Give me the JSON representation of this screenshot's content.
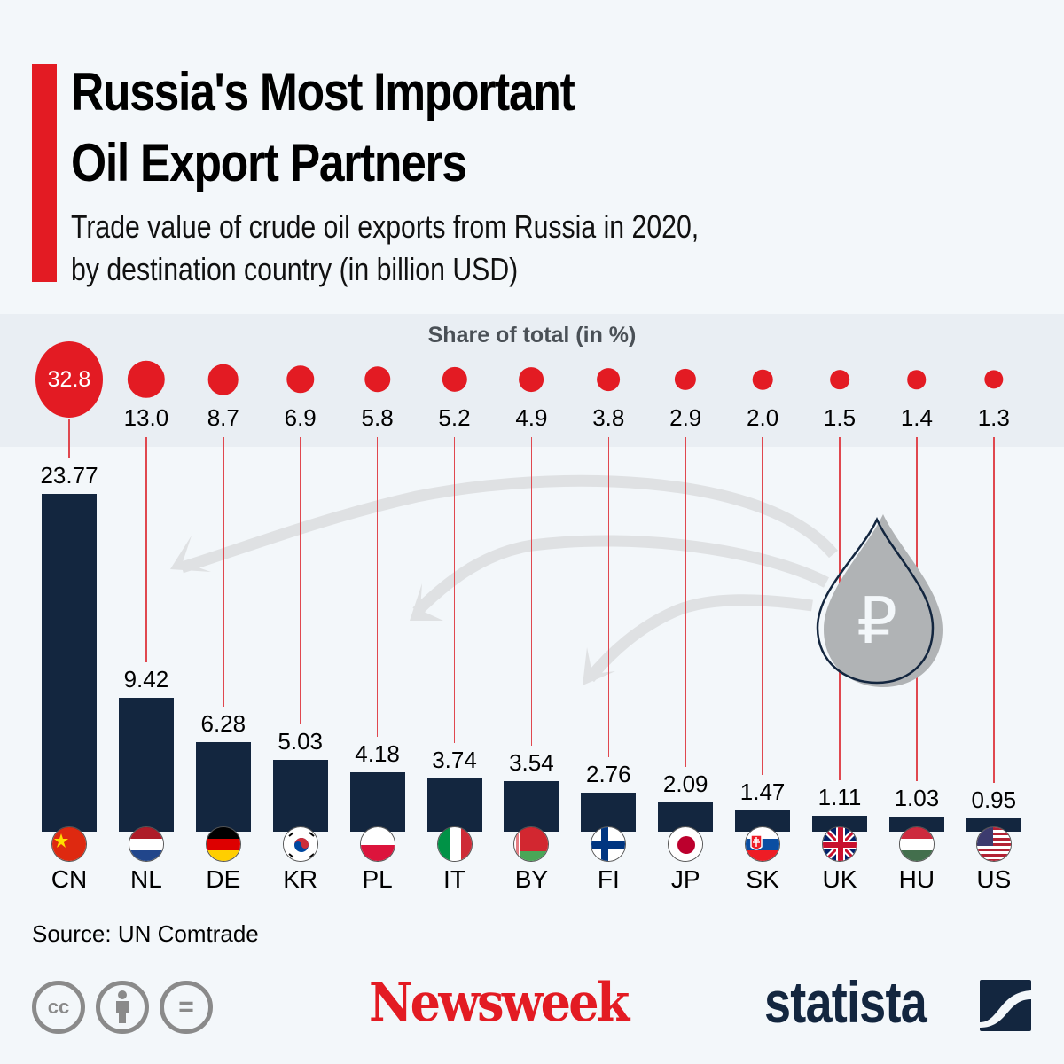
{
  "header": {
    "title_line1": "Russia's Most Important",
    "title_line2": "Oil Export Partners",
    "subtitle_line1": "Trade value of crude oil exports from Russia in 2020,",
    "subtitle_line2": "by destination country (in billion USD)"
  },
  "share_header": "Share of total (in %)",
  "colors": {
    "accent": "#e31b23",
    "bar": "#13263f",
    "background": "#f3f7fa",
    "share_band": "#e9eef3",
    "drop": "#b0b3b5"
  },
  "drop_icon": "ruble-oil-drop-icon",
  "drop_symbol": "₽",
  "chart_data": {
    "type": "bar",
    "title": "Russia's Most Important Oil Export Partners",
    "subtitle": "Trade value of crude oil exports from Russia in 2020, by destination country (in billion USD)",
    "xlabel": "",
    "ylabel": "Trade value (billion USD)",
    "categories": [
      "CN",
      "NL",
      "DE",
      "KR",
      "PL",
      "IT",
      "BY",
      "FI",
      "JP",
      "SK",
      "UK",
      "HU",
      "US"
    ],
    "series": [
      {
        "name": "Trade value (billion USD)",
        "values": [
          23.77,
          9.42,
          6.28,
          5.03,
          4.18,
          3.74,
          3.54,
          2.76,
          2.09,
          1.47,
          1.11,
          1.03,
          0.95
        ]
      },
      {
        "name": "Share of total (in %)",
        "values": [
          32.8,
          13.0,
          8.7,
          6.9,
          5.8,
          5.2,
          4.9,
          3.8,
          2.9,
          2.0,
          1.5,
          1.4,
          1.3
        ]
      }
    ],
    "value_labels": [
      "23.77",
      "9.42",
      "6.28",
      "5.03",
      "4.18",
      "3.74",
      "3.54",
      "2.76",
      "2.09",
      "1.47",
      "1.11",
      "1.03",
      "0.95"
    ],
    "share_labels": [
      "32.8",
      "13.0",
      "8.7",
      "6.9",
      "5.8",
      "5.2",
      "4.9",
      "3.8",
      "2.9",
      "2.0",
      "1.5",
      "1.4",
      "1.3"
    ],
    "grid": false,
    "legend": "none",
    "ylim": [
      0,
      24
    ]
  },
  "countries": [
    {
      "code": "CN",
      "flag": "china-flag-icon"
    },
    {
      "code": "NL",
      "flag": "netherlands-flag-icon"
    },
    {
      "code": "DE",
      "flag": "germany-flag-icon"
    },
    {
      "code": "KR",
      "flag": "south-korea-flag-icon"
    },
    {
      "code": "PL",
      "flag": "poland-flag-icon"
    },
    {
      "code": "IT",
      "flag": "italy-flag-icon"
    },
    {
      "code": "BY",
      "flag": "belarus-flag-icon"
    },
    {
      "code": "FI",
      "flag": "finland-flag-icon"
    },
    {
      "code": "JP",
      "flag": "japan-flag-icon"
    },
    {
      "code": "SK",
      "flag": "slovakia-flag-icon"
    },
    {
      "code": "UK",
      "flag": "uk-flag-icon"
    },
    {
      "code": "HU",
      "flag": "hungary-flag-icon"
    },
    {
      "code": "US",
      "flag": "usa-flag-icon"
    }
  ],
  "footer": {
    "source": "Source: UN Comtrade",
    "license_icons": [
      "cc-icon",
      "attribution-icon",
      "no-derivatives-icon"
    ],
    "cc_text": "cc",
    "nd_text": "=",
    "newsweek_logo": "Newsweek",
    "statista_logo": "statista"
  }
}
